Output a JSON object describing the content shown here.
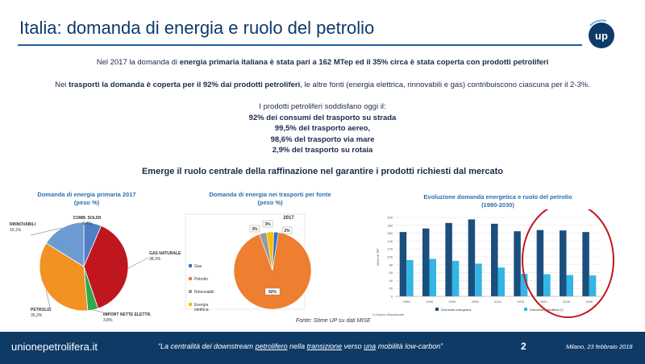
{
  "header": {
    "title": "Italia: domanda di energia e ruolo del petrolio",
    "logo_text": "up"
  },
  "intro": {
    "line1_a": "Nel 2017 la domanda di ",
    "line1_b": "energia primaria italiana è stata pari a 162 MTep ed il 35% circa è stata coperta con prodotti petroliferi",
    "line2_a": "Nei ",
    "line2_b": "trasporti la domanda è coperta per il 92% dai prodotti petroliferi",
    "line2_c": ", le altre fonti (energia elettrica, rinnovabili e gas) contribuiscono ciascuna per il 2-3%."
  },
  "list": {
    "header": "I prodotti petroliferi soddisfano oggi il:",
    "items": [
      "92% dei consumi del trasporto su strada",
      "99,5% del trasporto aereo,",
      "98,6% del trasporto via mare",
      "2,9% del trasporto su rotaia"
    ]
  },
  "emerge": "Emerge il ruolo centrale della raffinazione nel garantire i prodotti richiesti dal mercato",
  "chart_data": [
    {
      "type": "pie",
      "title": "Domanda di energia primaria 2017",
      "subtitle": "(peso %)",
      "slices": [
        {
          "label": "COMB. SOLIDI",
          "value_label": "6,4%",
          "value": 6.4,
          "color": "#4f7fc4"
        },
        {
          "label": "GAS NATURALE",
          "value_label": "38,3%",
          "value": 38.3,
          "color": "#c0161e"
        },
        {
          "label": "IMPORT NETTE ELETTR.",
          "value_label": "3,8%",
          "value": 3.8,
          "color": "#2ea84a"
        },
        {
          "label": "PETROLIO",
          "value_label": "35,2%",
          "value": 35.2,
          "color": "#f29222"
        },
        {
          "label": "RINNOVABILI",
          "value_label": "16,1%",
          "value": 16.1,
          "color": "#6c9bd2"
        }
      ]
    },
    {
      "type": "pie",
      "title": "Domanda di energia nei trasporti per fonte",
      "subtitle": "(peso %)",
      "year": "2017",
      "slices": [
        {
          "label": "Gas",
          "value_label": "2%",
          "value": 2,
          "color": "#3a6fc4"
        },
        {
          "label": "Petrolio",
          "value_label": "92%",
          "value": 92,
          "color": "#ee7e30"
        },
        {
          "label": "Rinnovabili",
          "value_label": "3%",
          "value": 3,
          "color": "#9a9a9a"
        },
        {
          "label": "Energia elettrica",
          "value_label": "3%",
          "value": 3,
          "color": "#f5c000"
        }
      ]
    },
    {
      "type": "bar",
      "title": "Evoluzione domanda energetica e ruolo del petrolio",
      "subtitle": "(1990-2030)",
      "categories": [
        "1990",
        "1995",
        "2000",
        "2005",
        "2010",
        "2015",
        "2020",
        "2025",
        "2030"
      ],
      "series": [
        {
          "name": "Domanda energetica",
          "values": [
            163,
            172,
            186,
            195,
            184,
            165,
            168,
            167,
            163
          ],
          "color": "#1a4f7e"
        },
        {
          "name": "Domanda petrolifera (*)",
          "values": [
            92,
            95,
            90,
            83,
            73,
            57,
            56,
            54,
            53
          ],
          "color": "#33b5e5"
        }
      ],
      "ylim": [
        0,
        200
      ],
      "yticks": [
        "0",
        "20",
        "40",
        "60",
        "80",
        "100",
        "120",
        "140",
        "160",
        "180",
        "200"
      ],
      "ylabel": "Milioni di TEP",
      "note": "(*) Esclusi i Biocarburanti",
      "highlight_categories": [
        "2020",
        "2025",
        "2030"
      ],
      "highlight_color": "#c0161e"
    }
  ],
  "source": "Fonte: Stime UP su dati MISE",
  "footer": {
    "site": "unionepetrolifera.it",
    "quote_open": "“La centralità del downstream ",
    "quote_u1": "petrolifero",
    "quote_mid1": " nella ",
    "quote_u2": "transizione",
    "quote_mid2": " verso ",
    "quote_u3": "una",
    "quote_mid3": " mobilità ",
    "quote_end": "low-carbon”",
    "page": "2",
    "date": "Milano, 23 febbraio 2018"
  }
}
